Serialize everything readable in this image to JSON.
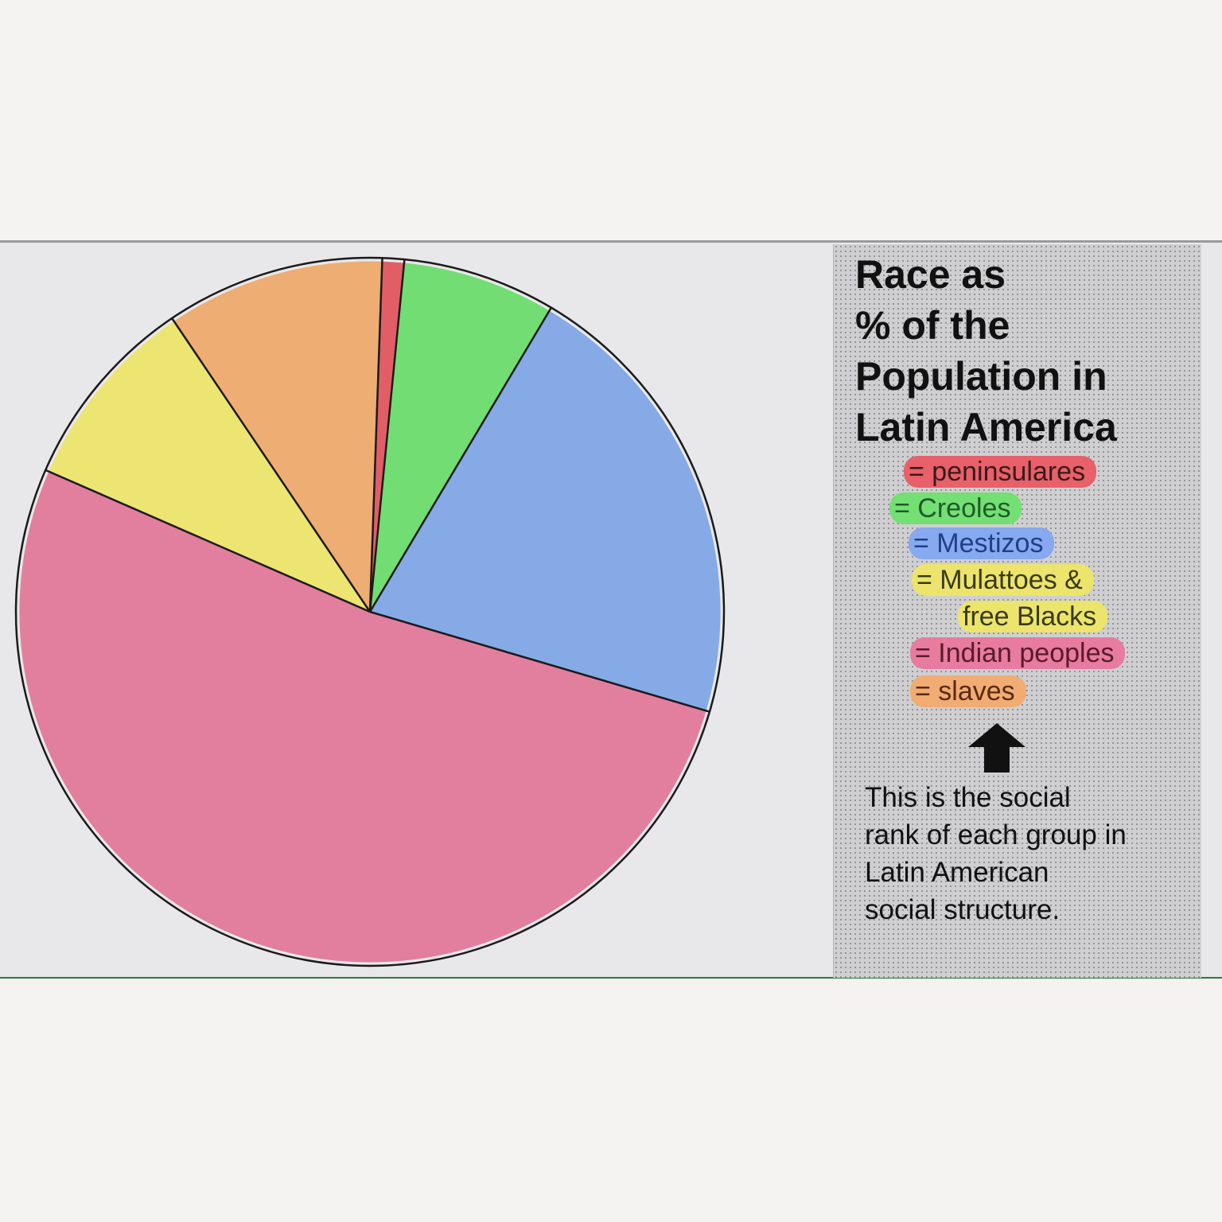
{
  "chart_data": {
    "type": "pie",
    "title": "Race as % of the Population in Latin America",
    "title_lines": [
      "Race as",
      "% of the",
      "Population in",
      "Latin America"
    ],
    "slices": [
      {
        "key": "peninsulares",
        "value": 1,
        "color": "#e05660"
      },
      {
        "key": "creoles",
        "value": 7,
        "color": "#6cdc6c"
      },
      {
        "key": "mestizos",
        "value": 21,
        "color": "#7fa6e6"
      },
      {
        "key": "indian",
        "value": 52,
        "color": "#e2789a"
      },
      {
        "key": "mulattoes",
        "value": 9,
        "color": "#ede56a"
      },
      {
        "key": "slaves",
        "value": 10,
        "color": "#eeaa6c"
      }
    ],
    "legend_placement": "right"
  },
  "legend": {
    "items": [
      {
        "key": "peninsulares",
        "text": "= peninsulares",
        "highlight": "#e7606a",
        "text_color": "#3a1a1a"
      },
      {
        "key": "creoles",
        "text": "= Creoles",
        "highlight": "#74df72",
        "text_color": "#1f5a2a"
      },
      {
        "key": "mestizos",
        "text": "= Mestizos",
        "highlight": "#86a9ef",
        "text_color": "#1f3f8a"
      },
      {
        "key": "mulattoes_1",
        "text": "= Mulattoes &",
        "highlight": "#ece46c",
        "text_color": "#3a3a1a"
      },
      {
        "key": "mulattoes_2",
        "text": "free Blacks",
        "highlight": "#ece46c",
        "text_color": "#3a3a1a"
      },
      {
        "key": "indian",
        "text": "= Indian peoples",
        "highlight": "#e77ba0",
        "text_color": "#5a1a2a"
      },
      {
        "key": "slaves",
        "text": "= slaves",
        "highlight": "#f0ac72",
        "text_color": "#5a2a10"
      }
    ]
  },
  "note": {
    "lines": [
      "This is the social",
      "rank of each group in",
      "Latin American",
      "social structure."
    ]
  }
}
